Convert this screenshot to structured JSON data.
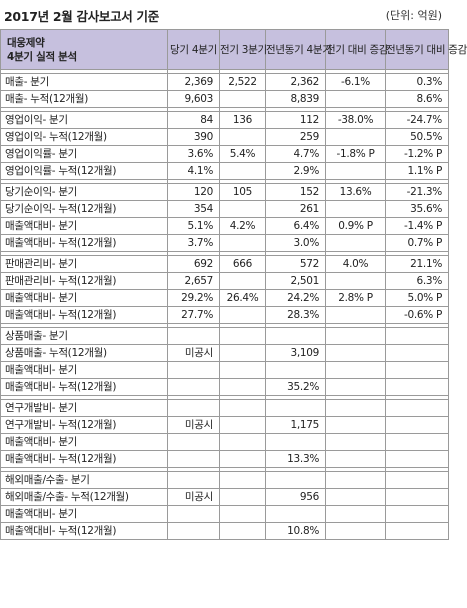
{
  "title": "2017년 2월 감사보고서 기준",
  "unit": "(단위: 억원)",
  "header": {
    "company_line1": "대웅제약",
    "company_line2": "4분기 실적 분석",
    "cols": [
      {
        "l1": "당기",
        "l2": "4분기"
      },
      {
        "l1": "전기",
        "l2": "3분기"
      },
      {
        "l1": "전년동기",
        "l2": "4분기"
      },
      {
        "l1": "전기 대비",
        "l2": "증감"
      },
      {
        "l1": "전년동기",
        "l2": "대비 증감"
      }
    ]
  },
  "groups": [
    [
      {
        "label": "매출- 분기",
        "v": [
          "2,369",
          "2,522",
          "2,362",
          "-6.1%",
          "0.3%"
        ]
      },
      {
        "label": "매출- 누적(12개월)",
        "v": [
          "9,603",
          "",
          "8,839",
          "",
          "8.6%"
        ]
      }
    ],
    [
      {
        "label": "영업이익- 분기",
        "v": [
          "84",
          "136",
          "112",
          "-38.0%",
          "-24.7%"
        ]
      },
      {
        "label": "영업이익- 누적(12개월)",
        "v": [
          "390",
          "",
          "259",
          "",
          "50.5%"
        ]
      },
      {
        "label": "영업이익률- 분기",
        "v": [
          "3.6%",
          "5.4%",
          "4.7%",
          "-1.8% P",
          "-1.2% P"
        ]
      },
      {
        "label": "영업이익률- 누적(12개월)",
        "v": [
          "4.1%",
          "",
          "2.9%",
          "",
          "1.1% P"
        ]
      }
    ],
    [
      {
        "label": "당기순이익- 분기",
        "v": [
          "120",
          "105",
          "152",
          "13.6%",
          "-21.3%"
        ]
      },
      {
        "label": "당기순이익- 누적(12개월)",
        "v": [
          "354",
          "",
          "261",
          "",
          "35.6%"
        ]
      },
      {
        "label": "매출액대비- 분기",
        "v": [
          "5.1%",
          "4.2%",
          "6.4%",
          "0.9% P",
          "-1.4% P"
        ]
      },
      {
        "label": "매출액대비- 누적(12개월)",
        "v": [
          "3.7%",
          "",
          "3.0%",
          "",
          "0.7% P"
        ]
      }
    ],
    [
      {
        "label": "판매관리비- 분기",
        "v": [
          "692",
          "666",
          "572",
          "4.0%",
          "21.1%"
        ]
      },
      {
        "label": "판매관리비- 누적(12개월)",
        "v": [
          "2,657",
          "",
          "2,501",
          "",
          "6.3%"
        ]
      },
      {
        "label": "매출액대비- 분기",
        "v": [
          "29.2%",
          "26.4%",
          "24.2%",
          "2.8% P",
          "5.0% P"
        ]
      },
      {
        "label": "매출액대비- 누적(12개월)",
        "v": [
          "27.7%",
          "",
          "28.3%",
          "",
          "-0.6% P"
        ]
      }
    ],
    [
      {
        "label": "상품매출- 분기",
        "v": [
          "",
          "",
          "",
          "",
          ""
        ]
      },
      {
        "label": "상품매출- 누적(12개월)",
        "v": [
          "미공시",
          "",
          "3,109",
          "",
          ""
        ]
      },
      {
        "label": "매출액대비- 분기",
        "v": [
          "",
          "",
          "",
          "",
          ""
        ]
      },
      {
        "label": "매출액대비- 누적(12개월)",
        "v": [
          "",
          "",
          "35.2%",
          "",
          ""
        ]
      }
    ],
    [
      {
        "label": "연구개발비- 분기",
        "v": [
          "",
          "",
          "",
          "",
          ""
        ]
      },
      {
        "label": "연구개발비- 누적(12개월)",
        "v": [
          "미공시",
          "",
          "1,175",
          "",
          ""
        ]
      },
      {
        "label": "매출액대비- 분기",
        "v": [
          "",
          "",
          "",
          "",
          ""
        ]
      },
      {
        "label": "매출액대비- 누적(12개월)",
        "v": [
          "",
          "",
          "13.3%",
          "",
          ""
        ]
      }
    ],
    [
      {
        "label": "해외매출/수출- 분기",
        "v": [
          "",
          "",
          "",
          "",
          ""
        ]
      },
      {
        "label": "해외매출/수출- 누적(12개월)",
        "v": [
          "미공시",
          "",
          "956",
          "",
          ""
        ]
      },
      {
        "label": "매출액대비- 분기",
        "v": [
          "",
          "",
          "",
          "",
          ""
        ]
      },
      {
        "label": "매출액대비- 누적(12개월)",
        "v": [
          "",
          "",
          "10.8%",
          "",
          ""
        ]
      }
    ]
  ]
}
